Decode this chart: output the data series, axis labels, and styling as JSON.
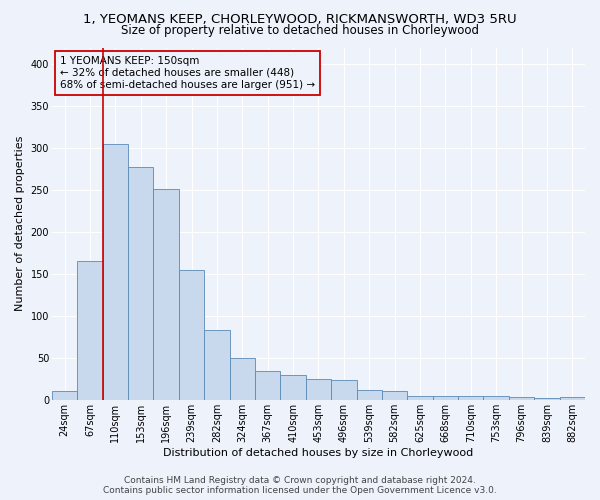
{
  "title": "1, YEOMANS KEEP, CHORLEYWOOD, RICKMANSWORTH, WD3 5RU",
  "subtitle": "Size of property relative to detached houses in Chorleywood",
  "xlabel": "Distribution of detached houses by size in Chorleywood",
  "ylabel": "Number of detached properties",
  "categories": [
    "24sqm",
    "67sqm",
    "110sqm",
    "153sqm",
    "196sqm",
    "239sqm",
    "282sqm",
    "324sqm",
    "367sqm",
    "410sqm",
    "453sqm",
    "496sqm",
    "539sqm",
    "582sqm",
    "625sqm",
    "668sqm",
    "710sqm",
    "753sqm",
    "796sqm",
    "839sqm",
    "882sqm"
  ],
  "values": [
    10,
    165,
    305,
    278,
    251,
    155,
    83,
    50,
    34,
    30,
    25,
    23,
    12,
    10,
    4,
    5,
    5,
    4,
    3,
    2,
    3
  ],
  "bar_color": "#c9d9ed",
  "bar_edge_color": "#5a8ab5",
  "vline_color": "#cc0000",
  "vline_bar_index": 2,
  "annotation_text": "1 YEOMANS KEEP: 150sqm\n← 32% of detached houses are smaller (448)\n68% of semi-detached houses are larger (951) →",
  "annotation_box_edgecolor": "#cc0000",
  "title_fontsize": 9.5,
  "subtitle_fontsize": 8.5,
  "xlabel_fontsize": 8,
  "ylabel_fontsize": 8,
  "tick_fontsize": 7,
  "annot_fontsize": 7.5,
  "ylim": [
    0,
    420
  ],
  "yticks": [
    0,
    50,
    100,
    150,
    200,
    250,
    300,
    350,
    400
  ],
  "background_color": "#edf2fb",
  "grid_color": "#ffffff",
  "footer1": "Contains HM Land Registry data © Crown copyright and database right 2024.",
  "footer2": "Contains public sector information licensed under the Open Government Licence v3.0.",
  "footer_fontsize": 6.5
}
